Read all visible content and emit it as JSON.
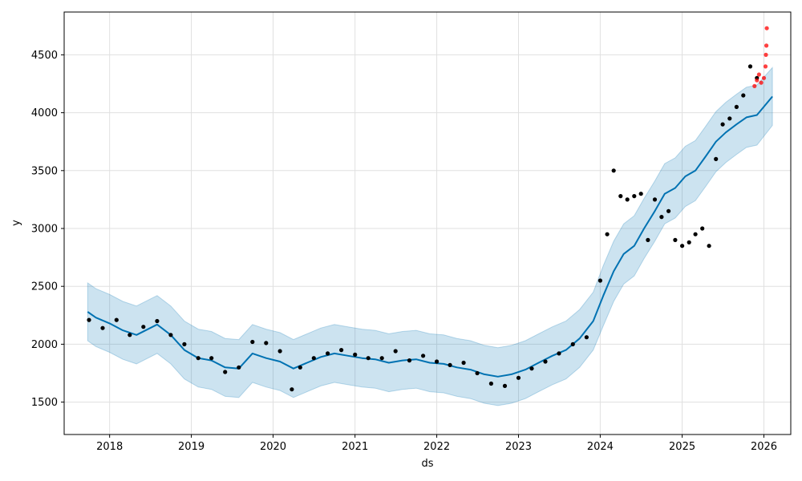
{
  "chart_data": {
    "type": "line",
    "title": "",
    "xlabel": "ds",
    "ylabel": "y",
    "xlim": [
      "2017-06-12",
      "2026-05-01"
    ],
    "ylim": [
      1220,
      4870
    ],
    "grid": true,
    "legend": "none",
    "x_ticks": [
      "2018",
      "2019",
      "2020",
      "2021",
      "2022",
      "2023",
      "2024",
      "2025",
      "2026"
    ],
    "y_ticks": [
      1500,
      2000,
      2500,
      3000,
      3500,
      4000,
      4500
    ],
    "colors": {
      "forecast_line": "#0072B2",
      "uncertainty_band": "#0072B2",
      "observed_points": "#000000",
      "holdout_points": "#ff0000",
      "grid": "#e0e0e0"
    },
    "series": [
      {
        "name": "",
        "kind": "forecast",
        "x": [
          "2017-09-25",
          "2017-11-01",
          "2018-01-01",
          "2018-03-01",
          "2018-05-01",
          "2018-08-01",
          "2018-10-01",
          "2018-12-01",
          "2019-02-01",
          "2019-04-01",
          "2019-06-01",
          "2019-08-01",
          "2019-10-01",
          "2019-12-01",
          "2020-02-01",
          "2020-04-01",
          "2020-06-01",
          "2020-08-01",
          "2020-10-01",
          "2020-12-01",
          "2021-02-01",
          "2021-04-01",
          "2021-06-01",
          "2021-08-01",
          "2021-10-01",
          "2021-12-01",
          "2022-02-01",
          "2022-04-01",
          "2022-06-01",
          "2022-08-01",
          "2022-10-01",
          "2022-12-01",
          "2023-02-01",
          "2023-04-01",
          "2023-06-01",
          "2023-08-01",
          "2023-10-01",
          "2023-12-01",
          "2024-01-15",
          "2024-03-01",
          "2024-04-15",
          "2024-06-01",
          "2024-07-15",
          "2024-09-01",
          "2024-10-15",
          "2024-12-01",
          "2025-01-15",
          "2025-03-01",
          "2025-04-15",
          "2025-06-01",
          "2025-07-15",
          "2025-09-01",
          "2025-10-15",
          "2025-12-01",
          "2026-02-08"
        ],
        "y": [
          2280,
          2230,
          2180,
          2120,
          2080,
          2170,
          2080,
          1950,
          1880,
          1860,
          1800,
          1790,
          1920,
          1880,
          1850,
          1790,
          1840,
          1890,
          1920,
          1900,
          1880,
          1870,
          1840,
          1860,
          1870,
          1840,
          1830,
          1800,
          1780,
          1740,
          1720,
          1740,
          1780,
          1840,
          1900,
          1950,
          2050,
          2200,
          2420,
          2630,
          2780,
          2850,
          3000,
          3150,
          3300,
          3350,
          3450,
          3500,
          3620,
          3750,
          3830,
          3900,
          3960,
          3980,
          4140
        ]
      },
      {
        "name": "",
        "kind": "uncertainty_upper",
        "x": [
          "2017-09-25",
          "2017-11-01",
          "2018-01-01",
          "2018-03-01",
          "2018-05-01",
          "2018-08-01",
          "2018-10-01",
          "2018-12-01",
          "2019-02-01",
          "2019-04-01",
          "2019-06-01",
          "2019-08-01",
          "2019-10-01",
          "2019-12-01",
          "2020-02-01",
          "2020-04-01",
          "2020-06-01",
          "2020-08-01",
          "2020-10-01",
          "2020-12-01",
          "2021-02-01",
          "2021-04-01",
          "2021-06-01",
          "2021-08-01",
          "2021-10-01",
          "2021-12-01",
          "2022-02-01",
          "2022-04-01",
          "2022-06-01",
          "2022-08-01",
          "2022-10-01",
          "2022-12-01",
          "2023-02-01",
          "2023-04-01",
          "2023-06-01",
          "2023-08-01",
          "2023-10-01",
          "2023-12-01",
          "2024-01-15",
          "2024-03-01",
          "2024-04-15",
          "2024-06-01",
          "2024-07-15",
          "2024-09-01",
          "2024-10-15",
          "2024-12-01",
          "2025-01-15",
          "2025-03-01",
          "2025-04-15",
          "2025-06-01",
          "2025-07-15",
          "2025-09-01",
          "2025-10-15",
          "2025-12-01",
          "2026-02-08"
        ],
        "y": [
          2530,
          2480,
          2430,
          2370,
          2330,
          2420,
          2330,
          2200,
          2130,
          2110,
          2050,
          2040,
          2170,
          2130,
          2100,
          2040,
          2090,
          2140,
          2170,
          2150,
          2130,
          2120,
          2090,
          2110,
          2120,
          2090,
          2080,
          2050,
          2030,
          1990,
          1970,
          1990,
          2030,
          2090,
          2150,
          2200,
          2300,
          2450,
          2680,
          2890,
          3040,
          3110,
          3260,
          3410,
          3560,
          3610,
          3710,
          3760,
          3880,
          4010,
          4090,
          4160,
          4220,
          4240,
          4390
        ]
      },
      {
        "name": "",
        "kind": "uncertainty_lower",
        "x": [
          "2017-09-25",
          "2017-11-01",
          "2018-01-01",
          "2018-03-01",
          "2018-05-01",
          "2018-08-01",
          "2018-10-01",
          "2018-12-01",
          "2019-02-01",
          "2019-04-01",
          "2019-06-01",
          "2019-08-01",
          "2019-10-01",
          "2019-12-01",
          "2020-02-01",
          "2020-04-01",
          "2020-06-01",
          "2020-08-01",
          "2020-10-01",
          "2020-12-01",
          "2021-02-01",
          "2021-04-01",
          "2021-06-01",
          "2021-08-01",
          "2021-10-01",
          "2021-12-01",
          "2022-02-01",
          "2022-04-01",
          "2022-06-01",
          "2022-08-01",
          "2022-10-01",
          "2022-12-01",
          "2023-02-01",
          "2023-04-01",
          "2023-06-01",
          "2023-08-01",
          "2023-10-01",
          "2023-12-01",
          "2024-01-15",
          "2024-03-01",
          "2024-04-15",
          "2024-06-01",
          "2024-07-15",
          "2024-09-01",
          "2024-10-15",
          "2024-12-01",
          "2025-01-15",
          "2025-03-01",
          "2025-04-15",
          "2025-06-01",
          "2025-07-15",
          "2025-09-01",
          "2025-10-15",
          "2025-12-01",
          "2026-02-08"
        ],
        "y": [
          2030,
          1980,
          1930,
          1870,
          1830,
          1920,
          1830,
          1700,
          1630,
          1610,
          1550,
          1540,
          1670,
          1630,
          1600,
          1540,
          1590,
          1640,
          1670,
          1650,
          1630,
          1620,
          1590,
          1610,
          1620,
          1590,
          1580,
          1550,
          1530,
          1490,
          1470,
          1490,
          1530,
          1590,
          1650,
          1700,
          1800,
          1950,
          2160,
          2370,
          2520,
          2590,
          2740,
          2890,
          3040,
          3090,
          3190,
          3240,
          3360,
          3490,
          3570,
          3640,
          3700,
          3720,
          3890
        ]
      },
      {
        "name": "",
        "kind": "observed",
        "x": [
          "2017-10-01",
          "2017-12-01",
          "2018-02-01",
          "2018-04-01",
          "2018-06-01",
          "2018-08-01",
          "2018-10-01",
          "2018-12-01",
          "2019-02-01",
          "2019-04-01",
          "2019-06-01",
          "2019-08-01",
          "2019-10-01",
          "2019-12-01",
          "2020-02-01",
          "2020-03-25",
          "2020-05-01",
          "2020-07-01",
          "2020-09-01",
          "2020-11-01",
          "2021-01-01",
          "2021-03-01",
          "2021-05-01",
          "2021-07-01",
          "2021-09-01",
          "2021-11-01",
          "2022-01-01",
          "2022-03-01",
          "2022-05-01",
          "2022-07-01",
          "2022-09-01",
          "2022-11-01",
          "2023-01-01",
          "2023-03-01",
          "2023-05-01",
          "2023-07-01",
          "2023-09-01",
          "2023-11-01",
          "2024-01-01",
          "2024-02-01",
          "2024-03-01",
          "2024-04-01",
          "2024-05-01",
          "2024-06-01",
          "2024-07-01",
          "2024-08-01",
          "2024-09-01",
          "2024-10-01",
          "2024-11-01",
          "2024-12-01",
          "2025-01-01",
          "2025-02-01",
          "2025-03-01",
          "2025-04-01",
          "2025-05-01",
          "2025-06-01",
          "2025-07-01",
          "2025-08-01",
          "2025-09-01",
          "2025-10-01",
          "2025-11-01",
          "2025-12-01"
        ],
        "y": [
          2210,
          2140,
          2210,
          2080,
          2150,
          2200,
          2080,
          2000,
          1880,
          1880,
          1760,
          1800,
          2020,
          2010,
          1940,
          1610,
          1800,
          1880,
          1920,
          1950,
          1910,
          1880,
          1880,
          1940,
          1860,
          1900,
          1850,
          1820,
          1840,
          1750,
          1660,
          1640,
          1710,
          1790,
          1850,
          1920,
          2000,
          2060,
          2550,
          2950,
          3500,
          3280,
          3250,
          3280,
          3300,
          2900,
          3250,
          3100,
          3150,
          2900,
          2850,
          2880,
          2950,
          3000,
          2850,
          3600,
          3900,
          3950,
          4050,
          4150,
          4400,
          4300
        ]
      },
      {
        "name": "",
        "kind": "holdout",
        "x": [
          "2025-11-20",
          "2025-12-01",
          "2025-12-10",
          "2025-12-20",
          "2026-01-01",
          "2026-01-08",
          "2026-01-10",
          "2026-01-12",
          "2026-01-14"
        ],
        "y": [
          4230,
          4280,
          4330,
          4260,
          4300,
          4400,
          4500,
          4580,
          4730
        ]
      }
    ]
  }
}
